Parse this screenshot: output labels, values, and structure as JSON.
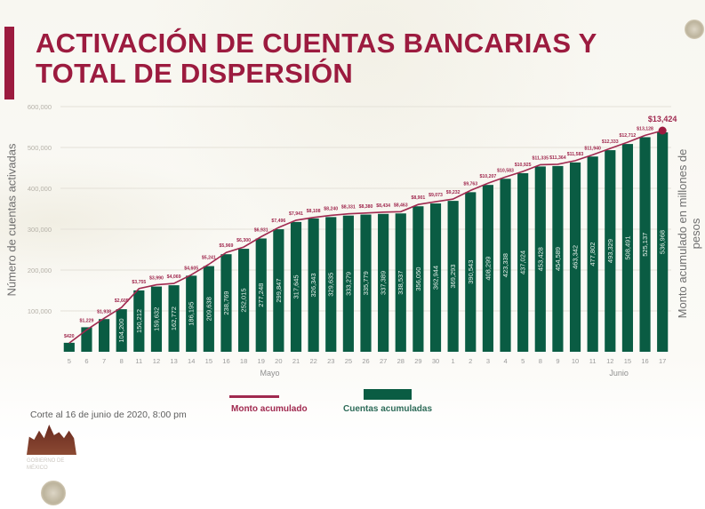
{
  "header": {
    "title_line1": "ACTIVACIÓN DE CUENTAS BANCARIAS Y",
    "title_line2": "TOTAL DE DISPERSIÓN",
    "accent_color": "#9c1b3f"
  },
  "footnote": "Corte al 16 de junio de 2020, 8:00 pm",
  "legend": {
    "line_label": "Monto acumulado",
    "bar_label": "Cuentas acumuladas"
  },
  "logo": {
    "text_line1": "GOBIERNO DE",
    "text_line2": "MÉXICO"
  },
  "chart_data": {
    "type": "bar",
    "title": "Activación de cuentas bancarias y total de dispersión",
    "xlabel": "",
    "ylabel": "Número de cuentas activadas",
    "ylabel_right": "Monto acumulado en millones de pesos",
    "ylim": [
      0,
      600000
    ],
    "yticks": [
      100000,
      200000,
      300000,
      400000,
      500000,
      600000
    ],
    "ytick_labels": [
      "100,000",
      "200,000",
      "300,000",
      "400,000",
      "500,000",
      "600,000"
    ],
    "grid": true,
    "legend_position": "bottom",
    "month_labels": [
      {
        "label": "Mayo",
        "center_index": 12
      },
      {
        "label": "Junio",
        "center_index": 32
      }
    ],
    "categories": [
      "5",
      "6",
      "7",
      "8",
      "11",
      "12",
      "13",
      "14",
      "15",
      "16",
      "18",
      "19",
      "20",
      "21",
      "22",
      "23",
      "25",
      "26",
      "27",
      "28",
      "29",
      "30",
      "1",
      "2",
      "3",
      "4",
      "5",
      "8",
      "9",
      "10",
      "11",
      "12",
      "15",
      "16",
      "17"
    ],
    "months": [
      "Mayo",
      "Mayo",
      "Mayo",
      "Mayo",
      "Mayo",
      "Mayo",
      "Mayo",
      "Mayo",
      "Mayo",
      "Mayo",
      "Mayo",
      "Mayo",
      "Mayo",
      "Mayo",
      "Mayo",
      "Mayo",
      "Mayo",
      "Mayo",
      "Mayo",
      "Mayo",
      "Mayo",
      "Mayo",
      "Junio",
      "Junio",
      "Junio",
      "Junio",
      "Junio",
      "Junio",
      "Junio",
      "Junio",
      "Junio",
      "Junio",
      "Junio",
      "Junio",
      "Junio"
    ],
    "series": [
      {
        "name": "Cuentas acumuladas",
        "type": "bar",
        "color": "#0a5c43",
        "values": [
          22000,
          60000,
          80000,
          104200,
          150212,
          159632,
          162772,
          186195,
          209638,
          238769,
          252015,
          277248,
          299847,
          317645,
          326343,
          329635,
          333279,
          335779,
          337389,
          338537,
          356050,
          362944,
          369293,
          390543,
          408299,
          423338,
          437024,
          453428,
          454589,
          463342,
          477802,
          493329,
          508491,
          525137,
          536968
        ],
        "labels": [
          "",
          "",
          "",
          "104,200",
          "150,212",
          "159,632",
          "162,772",
          "186,195",
          "209,638",
          "238,769",
          "252,015",
          "277,248",
          "299,847",
          "317,645",
          "326,343",
          "329,635",
          "333,279",
          "335,779",
          "337,389",
          "338,537",
          "356,050",
          "362,944",
          "369,293",
          "390,543",
          "408,299",
          "423,338",
          "437,024",
          "453,428",
          "454,589",
          "463,342",
          "477,802",
          "493,329",
          "508,491",
          "525,137",
          "536,968"
        ]
      },
      {
        "name": "Monto acumulado",
        "type": "line",
        "color": "#a0294f",
        "axis": "right",
        "values": [
          420,
          1229,
          1938,
          2605,
          3755,
          3990,
          4069,
          4605,
          5241,
          5969,
          6300,
          6931,
          7496,
          7941,
          8108,
          8240,
          8331,
          8380,
          8434,
          8463,
          8901,
          9073,
          9232,
          9763,
          10207,
          10583,
          10925,
          11335,
          11364,
          11583,
          11940,
          12333,
          12712,
          13128,
          13424
        ],
        "labels": [
          "$420",
          "$1,229",
          "$1,938",
          "$2,605",
          "$3,755",
          "$3,990",
          "$4,069",
          "$4,605",
          "$5,241",
          "$5,969",
          "$6,300",
          "$6,931",
          "$7,496",
          "$7,941",
          "$8,108",
          "$8,240",
          "$8,331",
          "$8,380",
          "$8,434",
          "$8,463",
          "$8,901",
          "$9,073",
          "$9,232",
          "$9,763",
          "$10,207",
          "$10,583",
          "$10,925",
          "$11,335",
          "$11,364",
          "$11,583",
          "$11,940",
          "$12,333",
          "$12,712",
          "$13,128",
          "$13,424"
        ]
      }
    ]
  }
}
